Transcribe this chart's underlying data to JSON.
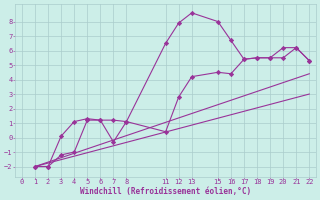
{
  "title": "",
  "xlabel": "Windchill (Refroidissement éolien,°C)",
  "bg_color": "#cceee8",
  "line_color": "#993399",
  "grid_color": "#aacccc",
  "xlim": [
    -0.5,
    22.5
  ],
  "ylim": [
    -2.7,
    9.2
  ],
  "xticks": [
    0,
    1,
    2,
    3,
    4,
    5,
    6,
    7,
    8,
    11,
    12,
    13,
    15,
    16,
    17,
    18,
    19,
    20,
    21,
    22
  ],
  "yticks": [
    -2,
    -1,
    0,
    1,
    2,
    3,
    4,
    5,
    6,
    7,
    8
  ],
  "line1_x": [
    1,
    2,
    3,
    4,
    5,
    6,
    7,
    8,
    11,
    12,
    13,
    15,
    16,
    17,
    18,
    19,
    20,
    21,
    22
  ],
  "line1_y": [
    -2,
    -2,
    -1.2,
    -1.0,
    1.2,
    1.2,
    1.2,
    1.1,
    6.5,
    7.9,
    8.6,
    8.0,
    6.7,
    5.4,
    5.5,
    5.5,
    6.2,
    6.2,
    5.3
  ],
  "line2_x": [
    1,
    2,
    3,
    4,
    5,
    6,
    7,
    8,
    11,
    12,
    13,
    15,
    16,
    17,
    18,
    19,
    20,
    21,
    22
  ],
  "line2_y": [
    -2,
    -2,
    0.1,
    1.1,
    1.3,
    1.2,
    -0.3,
    1.1,
    0.4,
    2.8,
    4.2,
    4.5,
    4.4,
    5.4,
    5.5,
    5.5,
    5.5,
    6.2,
    5.3
  ],
  "line3_x": [
    1,
    22
  ],
  "line3_y": [
    -2,
    4.4
  ],
  "line4_x": [
    1,
    22
  ],
  "line4_y": [
    -2,
    3.0
  ],
  "marker": "D",
  "markersize": 2.2,
  "linewidth": 0.8,
  "tick_fontsize": 5.0,
  "xlabel_fontsize": 5.5
}
